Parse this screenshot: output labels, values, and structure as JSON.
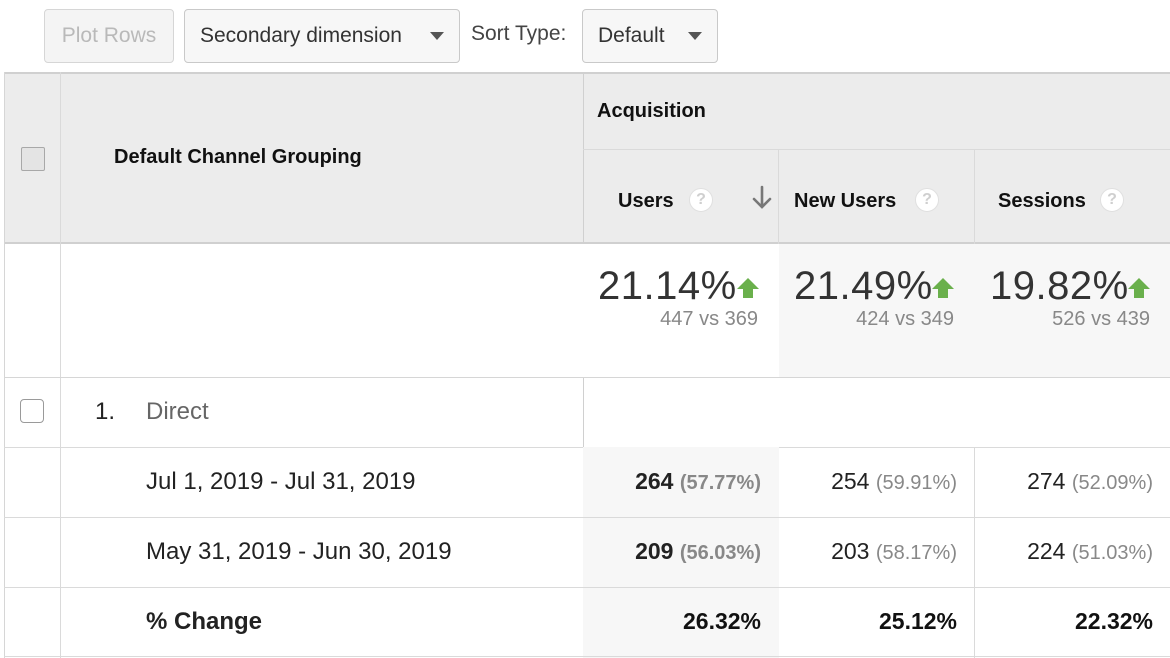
{
  "toolbar": {
    "plot_rows_label": "Plot Rows",
    "secondary_dimension_label": "Secondary dimension",
    "sort_type_label": "Sort Type:",
    "sort_type_value": "Default"
  },
  "table": {
    "dimension_header": "Default Channel Grouping",
    "group_header": "Acquisition",
    "columns": [
      {
        "label": "Users",
        "help": "?",
        "sorted": true
      },
      {
        "label": "New Users",
        "help": "?"
      },
      {
        "label": "Sessions",
        "help": "?"
      }
    ],
    "summary": [
      {
        "change": "21.14%",
        "compare": "447 vs 369"
      },
      {
        "change": "21.49%",
        "compare": "424 vs 349"
      },
      {
        "change": "19.82%",
        "compare": "526 vs 439"
      }
    ],
    "row": {
      "index": "1.",
      "name": "Direct",
      "periods": [
        {
          "label": "Jul 1, 2019 - Jul 31, 2019",
          "values": [
            {
              "value": "264",
              "pct": "(57.77%)"
            },
            {
              "value": "254",
              "pct": "(59.91%)"
            },
            {
              "value": "274",
              "pct": "(52.09%)"
            }
          ]
        },
        {
          "label": "May 31, 2019 - Jun 30, 2019",
          "values": [
            {
              "value": "209",
              "pct": "(56.03%)"
            },
            {
              "value": "203",
              "pct": "(58.17%)"
            },
            {
              "value": "224",
              "pct": "(51.03%)"
            }
          ]
        }
      ],
      "change_label": "% Change",
      "changes": [
        "26.32%",
        "25.12%",
        "22.32%"
      ]
    }
  },
  "colors": {
    "header_bg": "#ececec",
    "up_arrow": "#6ab04c"
  }
}
